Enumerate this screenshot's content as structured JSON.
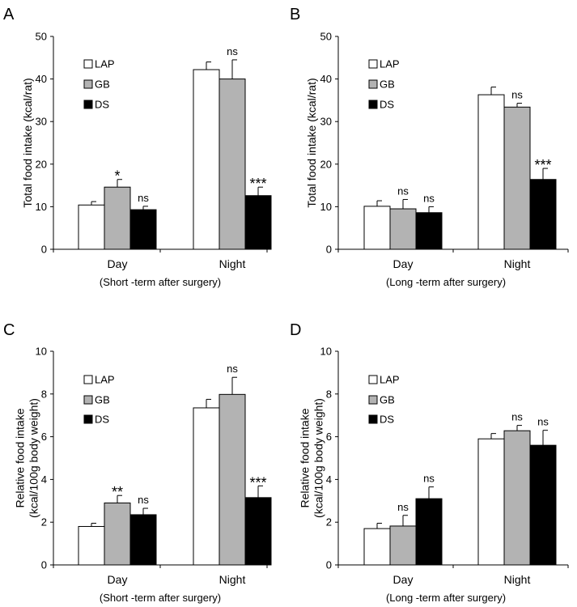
{
  "colors": {
    "LAP": "#ffffff",
    "GB": "#b3b3b3",
    "DS": "#000000"
  },
  "chart_data": [
    {
      "panel": "A",
      "type": "bar",
      "ylabel_lines": [
        "Total food intake (kcal/rat)"
      ],
      "ylim": [
        0,
        50
      ],
      "yticks": [
        "0",
        "10",
        "20",
        "30",
        "40",
        "50"
      ],
      "categories": [
        "Day",
        "Night"
      ],
      "subtitle": "(Short -term after surgery)",
      "legend": [
        "LAP",
        "GB",
        "DS"
      ],
      "series": [
        {
          "name": "LAP",
          "values": [
            10.4,
            42.2
          ],
          "errors": [
            0.8,
            1.8
          ],
          "sig": [
            "",
            ""
          ]
        },
        {
          "name": "GB",
          "values": [
            14.6,
            40.0
          ],
          "errors": [
            1.8,
            4.5
          ],
          "sig": [
            "*",
            "ns"
          ]
        },
        {
          "name": "DS",
          "values": [
            9.3,
            12.6
          ],
          "errors": [
            0.8,
            2.0
          ],
          "sig": [
            "ns",
            "***"
          ]
        }
      ]
    },
    {
      "panel": "B",
      "type": "bar",
      "ylabel_lines": [
        "Total food intake (kcal/rat)"
      ],
      "ylim": [
        0,
        50
      ],
      "yticks": [
        "0",
        "10",
        "20",
        "30",
        "40",
        "50"
      ],
      "categories": [
        "Day",
        "Night"
      ],
      "subtitle": "(Long -term after surgery)",
      "legend": [
        "LAP",
        "GB",
        "DS"
      ],
      "series": [
        {
          "name": "LAP",
          "values": [
            10.1,
            36.3
          ],
          "errors": [
            1.3,
            1.8
          ],
          "sig": [
            "",
            ""
          ]
        },
        {
          "name": "GB",
          "values": [
            9.5,
            33.4
          ],
          "errors": [
            2.2,
            0.9
          ],
          "sig": [
            "ns",
            "ns"
          ]
        },
        {
          "name": "DS",
          "values": [
            8.6,
            16.4
          ],
          "errors": [
            1.4,
            2.6
          ],
          "sig": [
            "ns",
            "***"
          ]
        }
      ]
    },
    {
      "panel": "C",
      "type": "bar",
      "ylabel_lines": [
        "Relative  food intake",
        "(kcal/100g body  weight)"
      ],
      "ylim": [
        0,
        10
      ],
      "yticks": [
        "0",
        "2",
        "4",
        "6",
        "8",
        "10"
      ],
      "categories": [
        "Day",
        "Night"
      ],
      "subtitle": "(Short -term after surgery)",
      "legend": [
        "LAP",
        "GB",
        "DS"
      ],
      "series": [
        {
          "name": "LAP",
          "values": [
            1.8,
            7.35
          ],
          "errors": [
            0.15,
            0.4
          ],
          "sig": [
            "",
            ""
          ]
        },
        {
          "name": "GB",
          "values": [
            2.9,
            7.98
          ],
          "errors": [
            0.35,
            0.8
          ],
          "sig": [
            "**",
            "ns"
          ]
        },
        {
          "name": "DS",
          "values": [
            2.35,
            3.15
          ],
          "errors": [
            0.3,
            0.55
          ],
          "sig": [
            "ns",
            "***"
          ]
        }
      ]
    },
    {
      "panel": "D",
      "type": "bar",
      "ylabel_lines": [
        "Relative  food intake",
        "(kcal/100g body  weight)"
      ],
      "ylim": [
        0,
        10
      ],
      "yticks": [
        "0",
        "2",
        "4",
        "6",
        "8",
        "10"
      ],
      "categories": [
        "Day",
        "Night"
      ],
      "subtitle": "(Long -term after surgery)",
      "legend": [
        "LAP",
        "GB",
        "DS"
      ],
      "series": [
        {
          "name": "LAP",
          "values": [
            1.7,
            5.9
          ],
          "errors": [
            0.25,
            0.25
          ],
          "sig": [
            "",
            ""
          ]
        },
        {
          "name": "GB",
          "values": [
            1.82,
            6.28
          ],
          "errors": [
            0.5,
            0.25
          ],
          "sig": [
            "ns",
            "ns"
          ]
        },
        {
          "name": "DS",
          "values": [
            3.1,
            5.6
          ],
          "errors": [
            0.55,
            0.7
          ],
          "sig": [
            "ns",
            "ns"
          ]
        }
      ]
    }
  ]
}
